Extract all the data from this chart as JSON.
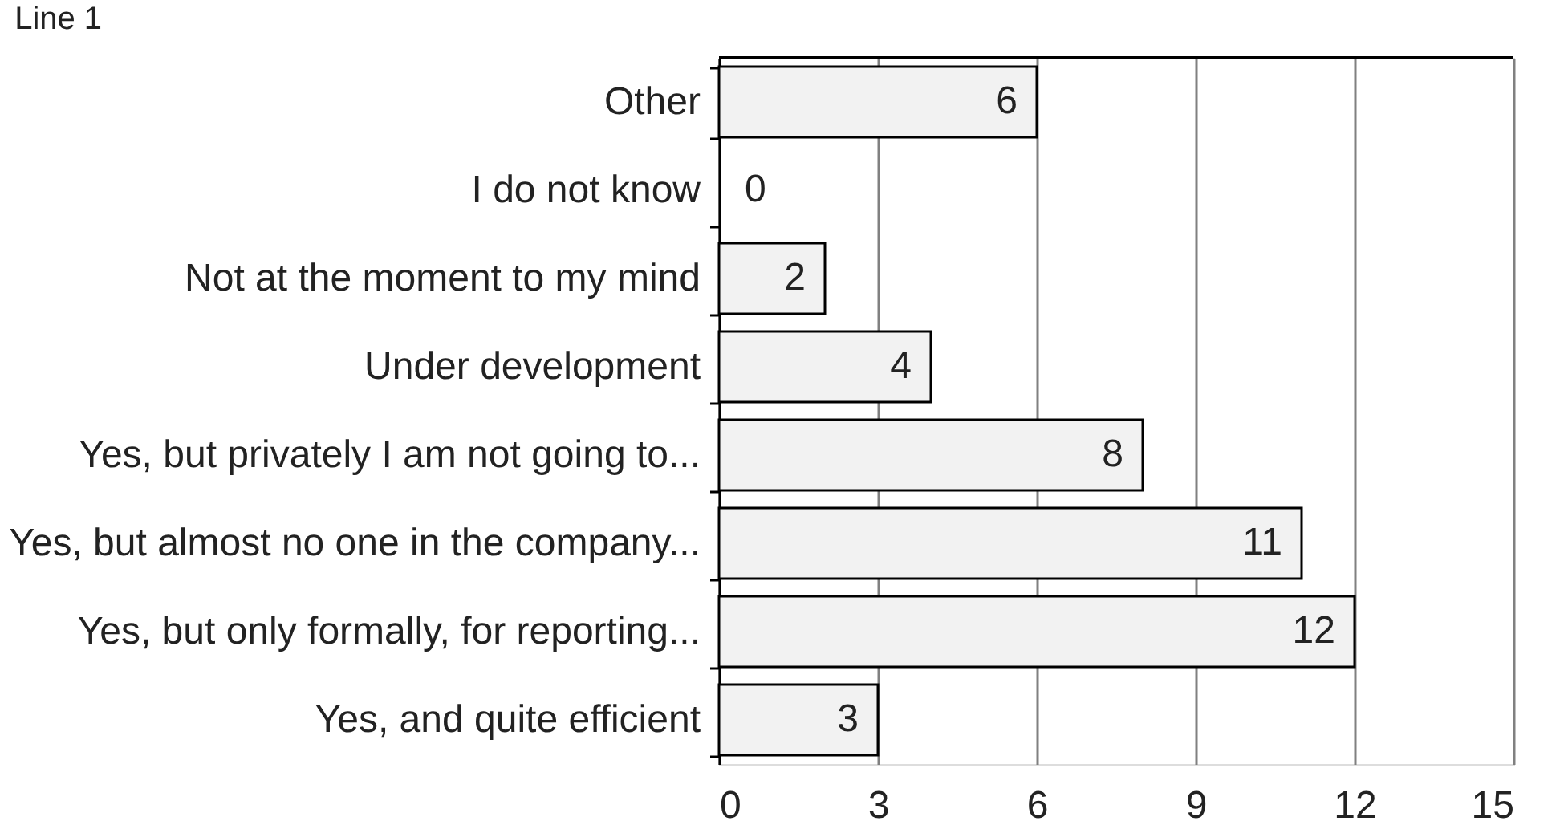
{
  "chart_data": {
    "type": "bar",
    "orientation": "horizontal",
    "title": "Line 1",
    "categories": [
      "Other",
      "I do not know",
      "Not at the moment to my mind",
      "Under development",
      "Yes, but privately I am not going to...",
      "Yes, but almost no one in the company...",
      "Yes, but only formally, for reporting...",
      "Yes, and quite efficient"
    ],
    "values": [
      6,
      0,
      2,
      4,
      8,
      11,
      12,
      3
    ],
    "color": "#f2f2f2",
    "xlim": [
      0,
      15
    ],
    "xticks": [
      0,
      3,
      6,
      9,
      12,
      15
    ],
    "grid": "x",
    "data_labels": true
  }
}
